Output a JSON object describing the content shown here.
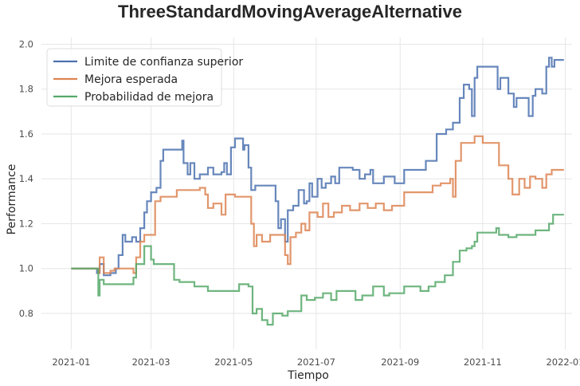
{
  "chart_data": {
    "type": "line",
    "title": "ThreeStandardMovingAverageAlternative",
    "xlabel": "Tiempo",
    "ylabel": "Performance",
    "xlim": [
      "2020-12-10",
      "2022-01-06"
    ],
    "ylim": [
      0.64,
      2.03
    ],
    "xticks": [
      "2021-01",
      "2021-03",
      "2021-05",
      "2021-07",
      "2021-09",
      "2021-11",
      "2022-01"
    ],
    "yticks": [
      "0.8",
      "1.0",
      "1.2",
      "1.4",
      "1.6",
      "1.8",
      "2.0"
    ],
    "grid": true,
    "legend_position": "top-left",
    "series": [
      {
        "name": "Limite de confianza superior",
        "color": "#4c72b0",
        "points": [
          [
            "2021-01-01",
            1.0
          ],
          [
            "2021-01-18",
            1.0
          ],
          [
            "2021-01-20",
            0.98
          ],
          [
            "2021-01-22",
            1.02
          ],
          [
            "2021-01-25",
            0.97
          ],
          [
            "2021-01-30",
            0.98
          ],
          [
            "2021-02-03",
            1.0
          ],
          [
            "2021-02-05",
            1.06
          ],
          [
            "2021-02-08",
            1.15
          ],
          [
            "2021-02-10",
            1.12
          ],
          [
            "2021-02-15",
            1.14
          ],
          [
            "2021-02-18",
            1.12
          ],
          [
            "2021-02-21",
            1.18
          ],
          [
            "2021-02-24",
            1.25
          ],
          [
            "2021-02-26",
            1.3
          ],
          [
            "2021-03-01",
            1.34
          ],
          [
            "2021-03-05",
            1.36
          ],
          [
            "2021-03-08",
            1.48
          ],
          [
            "2021-03-10",
            1.53
          ],
          [
            "2021-03-20",
            1.53
          ],
          [
            "2021-03-24",
            1.57
          ],
          [
            "2021-03-25",
            1.47
          ],
          [
            "2021-03-28",
            1.42
          ],
          [
            "2021-03-30",
            1.47
          ],
          [
            "2021-04-02",
            1.4
          ],
          [
            "2021-04-06",
            1.42
          ],
          [
            "2021-04-12",
            1.45
          ],
          [
            "2021-04-16",
            1.42
          ],
          [
            "2021-04-22",
            1.43
          ],
          [
            "2021-04-24",
            1.47
          ],
          [
            "2021-04-26",
            1.42
          ],
          [
            "2021-04-29",
            1.54
          ],
          [
            "2021-05-02",
            1.58
          ],
          [
            "2021-05-06",
            1.58
          ],
          [
            "2021-05-08",
            1.53
          ],
          [
            "2021-05-09",
            1.55
          ],
          [
            "2021-05-12",
            1.45
          ],
          [
            "2021-05-14",
            1.35
          ],
          [
            "2021-05-17",
            1.37
          ],
          [
            "2021-05-30",
            1.37
          ],
          [
            "2021-06-01",
            1.3
          ],
          [
            "2021-06-03",
            1.18
          ],
          [
            "2021-06-05",
            1.22
          ],
          [
            "2021-06-08",
            1.12
          ],
          [
            "2021-06-10",
            1.26
          ],
          [
            "2021-06-14",
            1.28
          ],
          [
            "2021-06-18",
            1.35
          ],
          [
            "2021-06-22",
            1.29
          ],
          [
            "2021-06-24",
            1.3
          ],
          [
            "2021-06-26",
            1.38
          ],
          [
            "2021-06-28",
            1.32
          ],
          [
            "2021-07-02",
            1.4
          ],
          [
            "2021-07-05",
            1.36
          ],
          [
            "2021-07-08",
            1.38
          ],
          [
            "2021-07-12",
            1.41
          ],
          [
            "2021-07-15",
            1.38
          ],
          [
            "2021-07-18",
            1.45
          ],
          [
            "2021-07-28",
            1.44
          ],
          [
            "2021-08-02",
            1.4
          ],
          [
            "2021-08-06",
            1.42
          ],
          [
            "2021-08-10",
            1.44
          ],
          [
            "2021-08-12",
            1.38
          ],
          [
            "2021-08-20",
            1.41
          ],
          [
            "2021-08-28",
            1.38
          ],
          [
            "2021-09-01",
            1.38
          ],
          [
            "2021-09-04",
            1.44
          ],
          [
            "2021-09-14",
            1.44
          ],
          [
            "2021-09-20",
            1.48
          ],
          [
            "2021-09-24",
            1.48
          ],
          [
            "2021-09-28",
            1.6
          ],
          [
            "2021-10-05",
            1.62
          ],
          [
            "2021-10-10",
            1.65
          ],
          [
            "2021-10-15",
            1.76
          ],
          [
            "2021-10-18",
            1.82
          ],
          [
            "2021-10-22",
            1.8
          ],
          [
            "2021-10-24",
            1.68
          ],
          [
            "2021-10-26",
            1.85
          ],
          [
            "2021-10-28",
            1.9
          ],
          [
            "2021-11-10",
            1.9
          ],
          [
            "2021-11-12",
            1.8
          ],
          [
            "2021-11-14",
            1.85
          ],
          [
            "2021-11-18",
            1.85
          ],
          [
            "2021-11-20",
            1.78
          ],
          [
            "2021-11-24",
            1.72
          ],
          [
            "2021-11-26",
            1.76
          ],
          [
            "2021-12-01",
            1.76
          ],
          [
            "2021-12-05",
            1.68
          ],
          [
            "2021-12-08",
            1.77
          ],
          [
            "2021-12-10",
            1.8
          ],
          [
            "2021-12-15",
            1.78
          ],
          [
            "2021-12-18",
            1.9
          ],
          [
            "2021-12-20",
            1.94
          ],
          [
            "2021-12-22",
            1.9
          ],
          [
            "2021-12-24",
            1.93
          ],
          [
            "2021-12-31",
            1.93
          ]
        ]
      },
      {
        "name": "Mejora esperada",
        "color": "#dd8452",
        "points": [
          [
            "2021-01-01",
            1.0
          ],
          [
            "2021-01-18",
            1.0
          ],
          [
            "2021-01-21",
            0.98
          ],
          [
            "2021-01-22",
            1.05
          ],
          [
            "2021-01-25",
            0.98
          ],
          [
            "2021-01-30",
            0.99
          ],
          [
            "2021-02-02",
            1.0
          ],
          [
            "2021-02-12",
            1.0
          ],
          [
            "2021-02-16",
            0.98
          ],
          [
            "2021-02-18",
            1.05
          ],
          [
            "2021-02-21",
            1.12
          ],
          [
            "2021-02-24",
            1.15
          ],
          [
            "2021-03-01",
            1.15
          ],
          [
            "2021-03-04",
            1.3
          ],
          [
            "2021-03-08",
            1.32
          ],
          [
            "2021-03-14",
            1.32
          ],
          [
            "2021-03-20",
            1.35
          ],
          [
            "2021-04-06",
            1.36
          ],
          [
            "2021-04-10",
            1.33
          ],
          [
            "2021-04-12",
            1.27
          ],
          [
            "2021-04-16",
            1.29
          ],
          [
            "2021-04-22",
            1.24
          ],
          [
            "2021-04-25",
            1.33
          ],
          [
            "2021-05-02",
            1.32
          ],
          [
            "2021-05-12",
            1.32
          ],
          [
            "2021-05-14",
            1.2
          ],
          [
            "2021-05-16",
            1.1
          ],
          [
            "2021-05-18",
            1.15
          ],
          [
            "2021-05-22",
            1.12
          ],
          [
            "2021-05-28",
            1.15
          ],
          [
            "2021-06-02",
            1.15
          ],
          [
            "2021-06-08",
            1.06
          ],
          [
            "2021-06-10",
            1.02
          ],
          [
            "2021-06-12",
            1.14
          ],
          [
            "2021-06-16",
            1.16
          ],
          [
            "2021-06-20",
            1.2
          ],
          [
            "2021-06-23",
            1.17
          ],
          [
            "2021-06-26",
            1.25
          ],
          [
            "2021-07-02",
            1.23
          ],
          [
            "2021-07-06",
            1.29
          ],
          [
            "2021-07-10",
            1.23
          ],
          [
            "2021-07-14",
            1.25
          ],
          [
            "2021-07-20",
            1.28
          ],
          [
            "2021-07-26",
            1.26
          ],
          [
            "2021-08-02",
            1.29
          ],
          [
            "2021-08-08",
            1.27
          ],
          [
            "2021-08-14",
            1.29
          ],
          [
            "2021-08-20",
            1.26
          ],
          [
            "2021-08-26",
            1.28
          ],
          [
            "2021-09-01",
            1.28
          ],
          [
            "2021-09-04",
            1.34
          ],
          [
            "2021-09-20",
            1.34
          ],
          [
            "2021-09-25",
            1.37
          ],
          [
            "2021-10-01",
            1.38
          ],
          [
            "2021-10-08",
            1.4
          ],
          [
            "2021-10-10",
            1.32
          ],
          [
            "2021-10-12",
            1.48
          ],
          [
            "2021-10-16",
            1.56
          ],
          [
            "2021-10-24",
            1.56
          ],
          [
            "2021-10-26",
            1.59
          ],
          [
            "2021-11-01",
            1.56
          ],
          [
            "2021-11-10",
            1.56
          ],
          [
            "2021-11-13",
            1.46
          ],
          [
            "2021-11-17",
            1.46
          ],
          [
            "2021-11-20",
            1.4
          ],
          [
            "2021-11-23",
            1.33
          ],
          [
            "2021-11-28",
            1.4
          ],
          [
            "2021-12-02",
            1.36
          ],
          [
            "2021-12-06",
            1.41
          ],
          [
            "2021-12-10",
            1.4
          ],
          [
            "2021-12-15",
            1.36
          ],
          [
            "2021-12-18",
            1.42
          ],
          [
            "2021-12-22",
            1.44
          ],
          [
            "2021-12-31",
            1.44
          ]
        ]
      },
      {
        "name": "Probabilidad de mejora",
        "color": "#55a868",
        "points": [
          [
            "2021-01-01",
            1.0
          ],
          [
            "2021-01-18",
            1.0
          ],
          [
            "2021-01-21",
            0.88
          ],
          [
            "2021-01-22",
            0.95
          ],
          [
            "2021-01-25",
            0.93
          ],
          [
            "2021-02-14",
            0.93
          ],
          [
            "2021-02-16",
            0.96
          ],
          [
            "2021-02-18",
            1.02
          ],
          [
            "2021-02-24",
            1.1
          ],
          [
            "2021-02-27",
            1.1
          ],
          [
            "2021-03-01",
            1.04
          ],
          [
            "2021-03-03",
            1.02
          ],
          [
            "2021-03-16",
            1.02
          ],
          [
            "2021-03-18",
            0.95
          ],
          [
            "2021-03-22",
            0.94
          ],
          [
            "2021-04-02",
            0.92
          ],
          [
            "2021-04-12",
            0.9
          ],
          [
            "2021-04-28",
            0.9
          ],
          [
            "2021-05-02",
            0.9
          ],
          [
            "2021-05-05",
            0.93
          ],
          [
            "2021-05-12",
            0.92
          ],
          [
            "2021-05-15",
            0.8
          ],
          [
            "2021-05-18",
            0.82
          ],
          [
            "2021-05-22",
            0.77
          ],
          [
            "2021-05-26",
            0.75
          ],
          [
            "2021-05-30",
            0.8
          ],
          [
            "2021-06-06",
            0.79
          ],
          [
            "2021-06-10",
            0.81
          ],
          [
            "2021-06-16",
            0.81
          ],
          [
            "2021-06-20",
            0.88
          ],
          [
            "2021-06-24",
            0.86
          ],
          [
            "2021-06-30",
            0.87
          ],
          [
            "2021-07-06",
            0.89
          ],
          [
            "2021-07-12",
            0.86
          ],
          [
            "2021-07-16",
            0.9
          ],
          [
            "2021-07-26",
            0.9
          ],
          [
            "2021-07-30",
            0.86
          ],
          [
            "2021-08-04",
            0.88
          ],
          [
            "2021-08-12",
            0.92
          ],
          [
            "2021-08-20",
            0.88
          ],
          [
            "2021-08-24",
            0.89
          ],
          [
            "2021-08-30",
            0.89
          ],
          [
            "2021-09-04",
            0.92
          ],
          [
            "2021-09-14",
            0.92
          ],
          [
            "2021-09-16",
            0.9
          ],
          [
            "2021-09-22",
            0.92
          ],
          [
            "2021-09-27",
            0.94
          ],
          [
            "2021-10-04",
            0.97
          ],
          [
            "2021-10-10",
            1.03
          ],
          [
            "2021-10-15",
            1.08
          ],
          [
            "2021-10-20",
            1.09
          ],
          [
            "2021-10-24",
            1.1
          ],
          [
            "2021-10-26",
            1.12
          ],
          [
            "2021-10-28",
            1.16
          ],
          [
            "2021-11-08",
            1.16
          ],
          [
            "2021-11-11",
            1.18
          ],
          [
            "2021-11-13",
            1.15
          ],
          [
            "2021-11-18",
            1.15
          ],
          [
            "2021-11-20",
            1.14
          ],
          [
            "2021-11-26",
            1.15
          ],
          [
            "2021-12-06",
            1.15
          ],
          [
            "2021-12-10",
            1.17
          ],
          [
            "2021-12-18",
            1.17
          ],
          [
            "2021-12-20",
            1.2
          ],
          [
            "2021-12-23",
            1.24
          ],
          [
            "2021-12-31",
            1.24
          ]
        ]
      }
    ]
  }
}
